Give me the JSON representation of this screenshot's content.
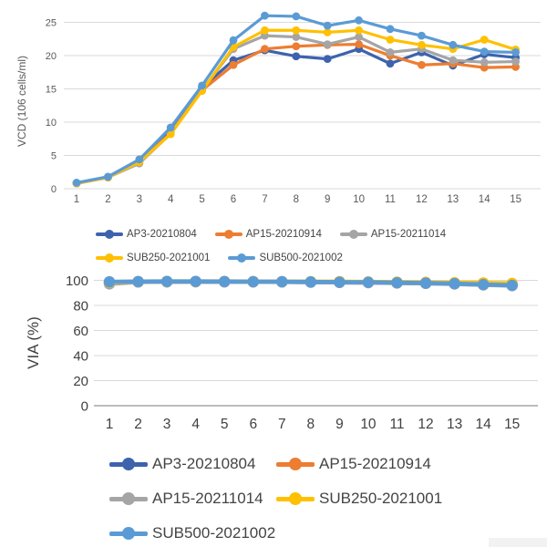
{
  "page": {
    "background": "#ffffff"
  },
  "colors": {
    "grid": "#d9d9d9",
    "axis_line": "#a6a6a6",
    "tick_text_small": "#595959",
    "tick_text_large": "#404040",
    "legend_text": "#444444"
  },
  "chart_data": [
    {
      "id": "vcd",
      "type": "line",
      "title": "",
      "xlabel": "",
      "ylabel": "VCD (106 cells/ml)",
      "x": [
        1,
        2,
        3,
        4,
        5,
        6,
        7,
        8,
        9,
        10,
        11,
        12,
        13,
        14,
        15
      ],
      "xlim": [
        1,
        15
      ],
      "ylim": [
        0,
        25
      ],
      "yticks": [
        0,
        5,
        10,
        15,
        20,
        25
      ],
      "grid": true,
      "legend_position": "bottom",
      "series": [
        {
          "name": "AP3-20210804",
          "color": "#3D63AD",
          "values": [
            0.8,
            1.7,
            4.2,
            8.8,
            15.2,
            19.3,
            20.8,
            19.9,
            19.5,
            21.0,
            18.8,
            20.5,
            18.5,
            20.2,
            19.7
          ]
        },
        {
          "name": "AP15-20210914",
          "color": "#ED7D31",
          "values": [
            0.8,
            1.7,
            4.0,
            8.4,
            14.8,
            18.6,
            21.0,
            21.4,
            21.6,
            21.7,
            20.0,
            18.6,
            18.8,
            18.2,
            18.3
          ]
        },
        {
          "name": "AP15-20211014",
          "color": "#A5A5A5",
          "values": [
            0.8,
            1.7,
            3.8,
            8.3,
            14.8,
            21.0,
            23.0,
            22.8,
            21.7,
            22.8,
            20.5,
            21.0,
            19.3,
            19.0,
            19.1
          ]
        },
        {
          "name": "SUB250-2021001",
          "color": "#FFC000",
          "values": [
            0.8,
            1.7,
            4.0,
            8.2,
            14.7,
            21.3,
            23.8,
            23.8,
            23.5,
            23.8,
            22.4,
            21.6,
            21.0,
            22.4,
            20.9
          ]
        },
        {
          "name": "SUB500-2021002",
          "color": "#5B9BD5",
          "values": [
            0.9,
            1.8,
            4.4,
            9.2,
            15.5,
            22.3,
            26.0,
            25.9,
            24.5,
            25.3,
            24.0,
            23.0,
            21.6,
            20.6,
            20.5
          ]
        }
      ],
      "legend_rows": [
        [
          "AP3-20210804",
          "AP15-20210914",
          "AP15-20211014"
        ],
        [
          "SUB250-2021001",
          "SUB500-2021002"
        ]
      ]
    },
    {
      "id": "via",
      "type": "line",
      "title": "",
      "xlabel": "",
      "ylabel": "VIA (%)",
      "x": [
        1,
        2,
        3,
        4,
        5,
        6,
        7,
        8,
        9,
        10,
        11,
        12,
        13,
        14,
        15
      ],
      "xlim": [
        1,
        15
      ],
      "ylim": [
        0,
        100
      ],
      "yticks": [
        0,
        20,
        40,
        60,
        80,
        100
      ],
      "grid": true,
      "legend_position": "bottom",
      "series": [
        {
          "name": "AP3-20210804",
          "color": "#3D63AD",
          "values": [
            98.3,
            98.8,
            98.9,
            99.0,
            98.9,
            98.9,
            98.8,
            98.6,
            98.4,
            98.3,
            98.0,
            97.7,
            97.3,
            96.6,
            96.0
          ]
        },
        {
          "name": "AP15-20210914",
          "color": "#ED7D31",
          "values": [
            98.6,
            98.9,
            99.0,
            99.0,
            99.0,
            98.9,
            98.9,
            98.8,
            98.6,
            98.4,
            98.1,
            97.8,
            97.4,
            96.8,
            96.4
          ]
        },
        {
          "name": "AP15-20211014",
          "color": "#A5A5A5",
          "values": [
            97.2,
            98.7,
            98.9,
            98.9,
            98.9,
            98.8,
            98.7,
            98.6,
            98.4,
            98.2,
            97.9,
            97.6,
            97.1,
            96.4,
            95.8
          ]
        },
        {
          "name": "SUB250-2021001",
          "color": "#FFC000",
          "values": [
            98.5,
            99.1,
            99.2,
            99.2,
            99.2,
            99.1,
            99.0,
            99.0,
            99.0,
            98.8,
            98.6,
            98.4,
            98.2,
            98.0,
            97.6
          ]
        },
        {
          "name": "SUB500-2021002",
          "color": "#5B9BD5",
          "values": [
            98.9,
            99.1,
            99.2,
            99.2,
            99.1,
            99.0,
            99.0,
            98.8,
            98.6,
            98.5,
            98.2,
            97.9,
            97.4,
            96.7,
            96.1
          ]
        }
      ],
      "legend_rows": [
        [
          "AP3-20210804",
          "AP15-20210914"
        ],
        [
          "AP15-20211014",
          "SUB250-2021001"
        ],
        [
          "SUB500-2021002"
        ]
      ]
    }
  ]
}
